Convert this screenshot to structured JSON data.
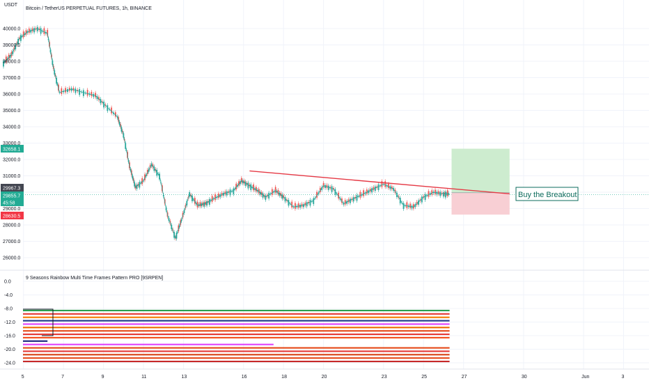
{
  "header": {
    "currency": "USDT",
    "symbol_title": "Bitcoin / TetherUS PERPETUAL FUTURES, 1h, BINANCE"
  },
  "indicator": {
    "title": "9 Seasons Rainbow Multi Time Frames Pattern PRO [9SRPEN]"
  },
  "annotation": {
    "text": "Buy the Breakout"
  },
  "price_tags": [
    {
      "value": "32658.1",
      "color": "#22ab94"
    },
    {
      "value": "29967.3",
      "color": "#434651"
    },
    {
      "value": "29855.7",
      "color": "#22ab94"
    },
    {
      "value": "45:58",
      "color": "#22ab94"
    },
    {
      "value": "28630.5",
      "color": "#f23645"
    }
  ],
  "chart_data": {
    "type": "line",
    "main_y_ticks": [
      "40000.0",
      "39000.0",
      "38000.0",
      "37000.0",
      "36000.0",
      "35000.0",
      "34000.0",
      "33000.0",
      "32000.0",
      "31000.0",
      "30000.0",
      "29000.0",
      "28000.0",
      "27000.0",
      "26000.0"
    ],
    "main_y_values": [
      40000,
      39000,
      38000,
      37000,
      36000,
      35000,
      34000,
      33000,
      32000,
      31000,
      30000,
      29000,
      28000,
      27000,
      26000
    ],
    "indicator_y_ticks": [
      "0.0",
      "-4.0",
      "-8.0",
      "-12.0",
      "-16.0",
      "-20.0",
      "-24.0"
    ],
    "indicator_y_values": [
      0,
      -4,
      -8,
      -12,
      -16,
      -20,
      -24
    ],
    "x_ticks": [
      "5",
      "7",
      "9",
      "11",
      "13",
      "16",
      "18",
      "20",
      "23",
      "25",
      "27",
      "30",
      "Jun",
      "3"
    ],
    "x_tick_index": [
      4,
      6,
      8,
      10,
      12,
      15,
      17,
      19,
      22,
      24,
      26,
      29,
      32,
      34
    ],
    "x_start_index": 3,
    "x_end_index": 35.2,
    "price_path": [
      [
        3,
        37900
      ],
      [
        3.4,
        38400
      ],
      [
        3.8,
        39400
      ],
      [
        4.2,
        39800
      ],
      [
        4.7,
        40000
      ],
      [
        5.2,
        39700
      ],
      [
        5.5,
        37600
      ],
      [
        5.8,
        36100
      ],
      [
        6.4,
        36300
      ],
      [
        7,
        36100
      ],
      [
        7.6,
        35900
      ],
      [
        8.1,
        35300
      ],
      [
        8.7,
        34600
      ],
      [
        9.0,
        33500
      ],
      [
        9.3,
        31600
      ],
      [
        9.6,
        30300
      ],
      [
        10.0,
        30700
      ],
      [
        10.4,
        31700
      ],
      [
        10.8,
        31000
      ],
      [
        11.2,
        28600
      ],
      [
        11.6,
        27200
      ],
      [
        11.9,
        28300
      ],
      [
        12.3,
        29900
      ],
      [
        12.7,
        29200
      ],
      [
        13.1,
        29300
      ],
      [
        13.5,
        29600
      ],
      [
        14.0,
        29900
      ],
      [
        14.5,
        30100
      ],
      [
        14.9,
        30700
      ],
      [
        15.3,
        30400
      ],
      [
        15.7,
        30100
      ],
      [
        16.1,
        29700
      ],
      [
        16.6,
        30100
      ],
      [
        17,
        29700
      ],
      [
        17.5,
        29100
      ],
      [
        18,
        29200
      ],
      [
        18.5,
        29500
      ],
      [
        19,
        30400
      ],
      [
        19.5,
        30200
      ],
      [
        20,
        29300
      ],
      [
        20.5,
        29600
      ],
      [
        21,
        29900
      ],
      [
        21.5,
        30200
      ],
      [
        22,
        30500
      ],
      [
        22.5,
        30200
      ],
      [
        23,
        29200
      ],
      [
        23.5,
        29100
      ],
      [
        24,
        29700
      ],
      [
        24.5,
        30000
      ],
      [
        25,
        29900
      ],
      [
        25.3,
        29900
      ]
    ],
    "trendline": [
      [
        15.3,
        31300
      ],
      [
        28.3,
        29900
      ]
    ],
    "long_position": {
      "x_start": 25.4,
      "x_end": 28.3,
      "entry": 29967.3,
      "target": 32658.1,
      "stop": 28630.5,
      "profit_color": "#cdeccf",
      "loss_color": "#f8cfd4"
    },
    "indicator_rows": [
      {
        "y": -8.6,
        "color": "#2a9d4e",
        "x_end": 25.3
      },
      {
        "y": -9.6,
        "color": "#e53935",
        "x_end": 25.3
      },
      {
        "y": -10.6,
        "color": "#f57c00",
        "x_end": 25.3
      },
      {
        "y": -11.6,
        "color": "#1e3a8a",
        "x_end": 25.3
      },
      {
        "y": -12.6,
        "color": "#e040fb",
        "x_end": 25.3
      },
      {
        "y": -13.6,
        "color": "#ef6c00",
        "x_end": 25.3
      },
      {
        "y": -14.6,
        "color": "#e64a19",
        "x_end": 25.3
      },
      {
        "y": -15.6,
        "color": "#e53935",
        "x_end": 25.3
      },
      {
        "y": -16.6,
        "color": "#f4511e",
        "x_end": 25.3
      },
      {
        "y": -17.6,
        "color": "#1a237e",
        "x_end": 5.2
      },
      {
        "y": -18.6,
        "color": "#e040fb",
        "x_end": 16.5
      },
      {
        "y": -19.6,
        "color": "#e64a19",
        "x_end": 25.3
      },
      {
        "y": -20.6,
        "color": "#e53935",
        "x_end": 25.3
      },
      {
        "y": -21.6,
        "color": "#d84315",
        "x_end": 25.3
      },
      {
        "y": -22.6,
        "color": "#e64a19",
        "x_end": 25.3
      },
      {
        "y": -23.6,
        "color": "#c62828",
        "x_end": 25.3
      }
    ]
  }
}
